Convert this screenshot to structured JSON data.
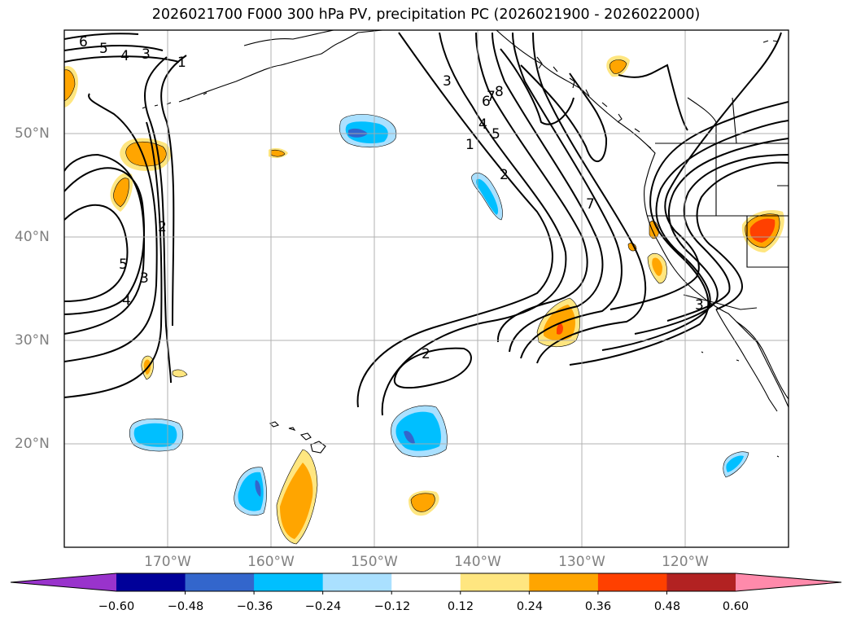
{
  "title": "2026021700 F000 300 hPa PV, precipitation PC (2026021900 - 2026022000)",
  "map": {
    "lon_range": [
      -180,
      -110
    ],
    "lat_range": [
      10,
      60
    ],
    "lat_ticks": [
      {
        "value": 20,
        "label": "20°N"
      },
      {
        "value": 30,
        "label": "30°N"
      },
      {
        "value": 40,
        "label": "40°N"
      },
      {
        "value": 50,
        "label": "50°N"
      }
    ],
    "lon_ticks": [
      {
        "value": -170,
        "label": "170°W"
      },
      {
        "value": -160,
        "label": "160°W"
      },
      {
        "value": -150,
        "label": "150°W"
      },
      {
        "value": -140,
        "label": "140°W"
      },
      {
        "value": -130,
        "label": "130°W"
      },
      {
        "value": -120,
        "label": "120°W"
      }
    ],
    "contour_labels": [
      "6",
      "5",
      "4",
      "3",
      "1",
      "2",
      "3",
      "4",
      "5",
      "3",
      "4",
      "5",
      "6",
      "7",
      "8",
      "1",
      "2",
      "3",
      "2",
      "7"
    ]
  },
  "colorbar": {
    "colors": [
      "#9933cc",
      "#000099",
      "#3366cc",
      "#00bfff",
      "#aae0ff",
      "#ffffff",
      "#ffe680",
      "#ffa500",
      "#ff4000",
      "#b22222",
      "#ff8aab"
    ],
    "labels": [
      "−0.60",
      "−0.48",
      "−0.36",
      "−0.24",
      "−0.12",
      "0.12",
      "0.24",
      "0.36",
      "0.48",
      "0.60"
    ]
  }
}
